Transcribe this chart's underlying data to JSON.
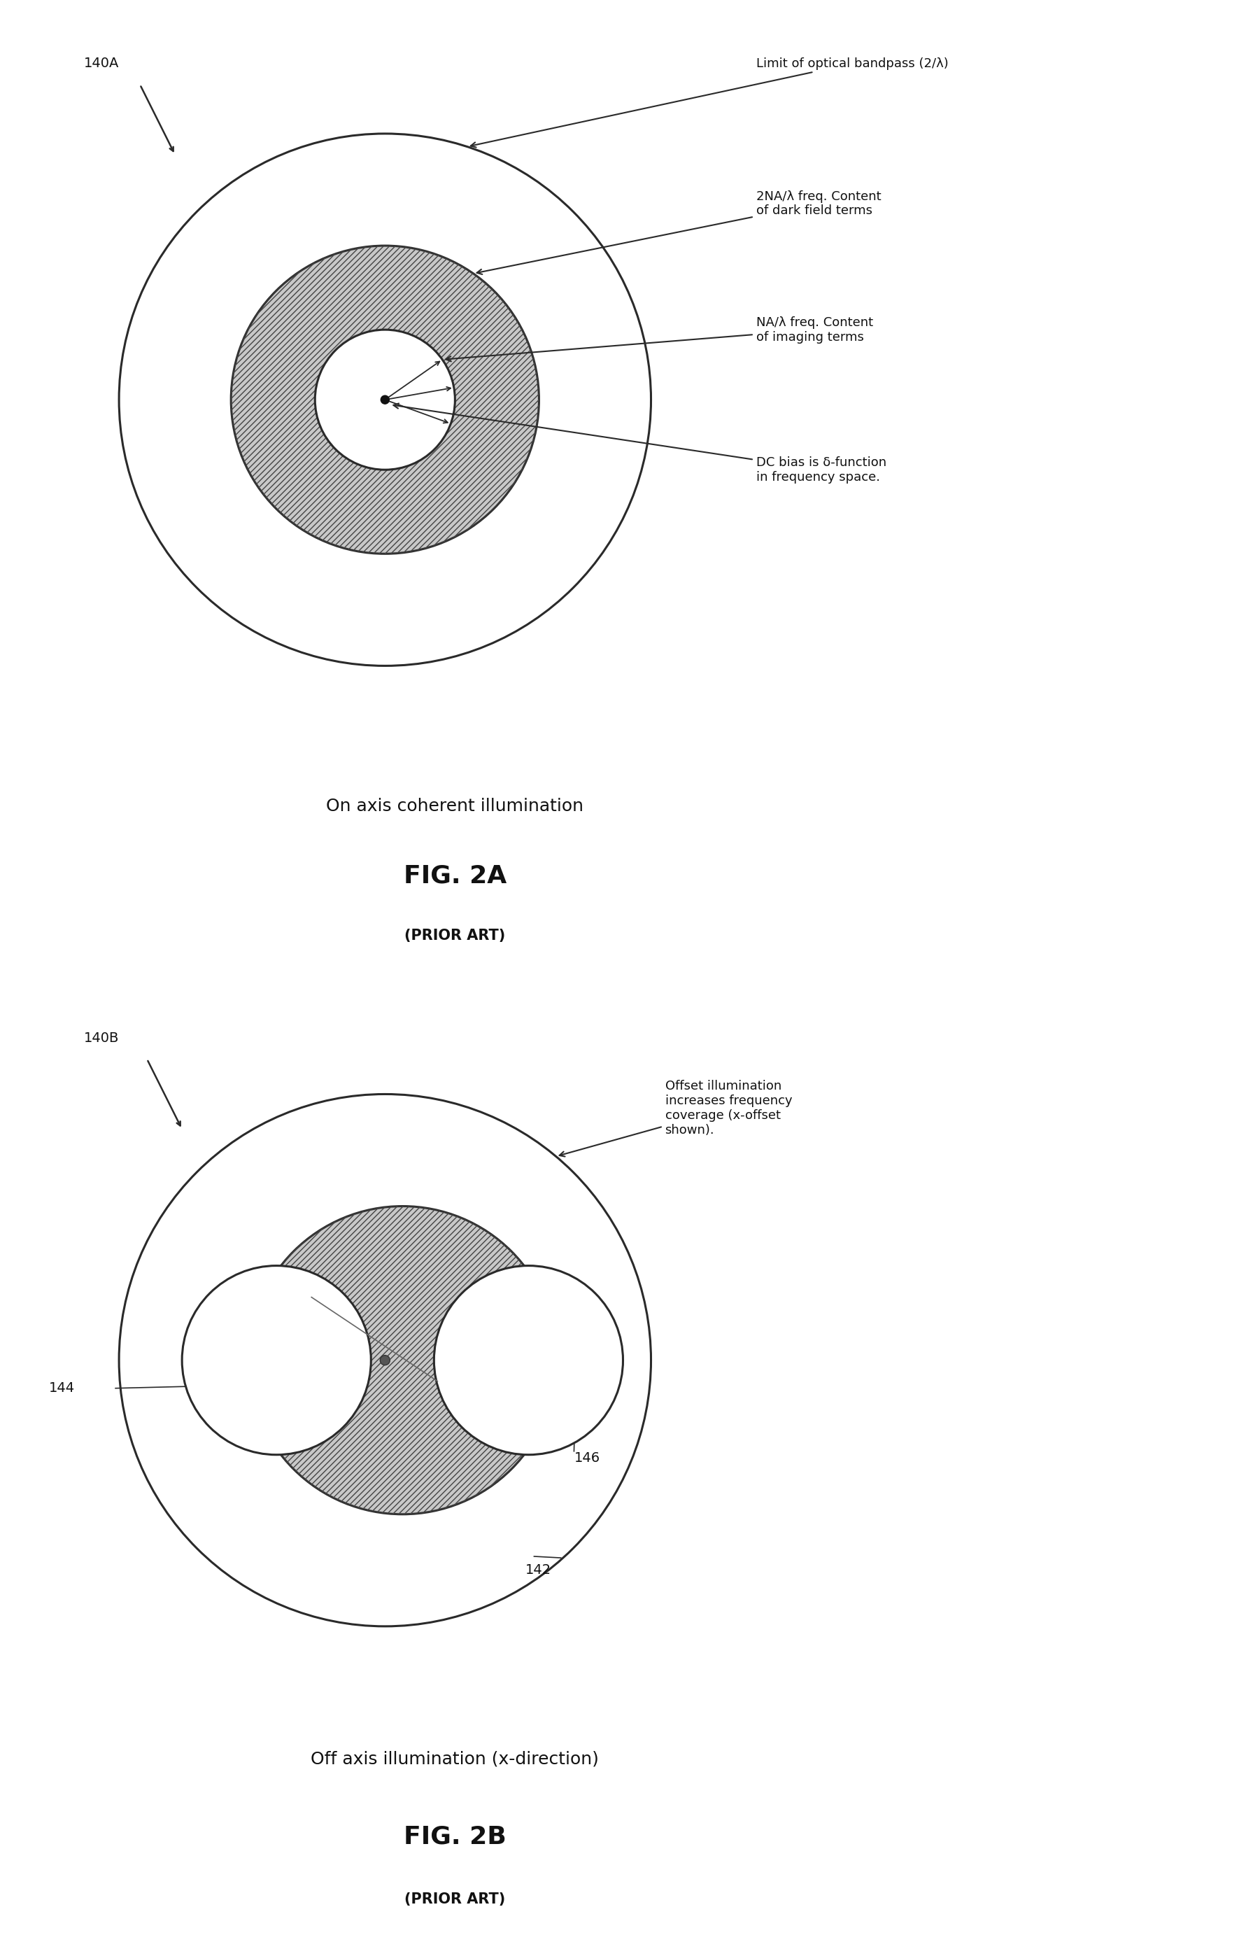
{
  "bg_color": "#ffffff",
  "fig_label_140A": "140A",
  "fig_label_140B": "140B",
  "fig_label_144": "144",
  "fig_label_146": "146",
  "fig_label_142": "142",
  "figA_title": "On axis coherent illumination",
  "figA_fig_label": "FIG. 2A",
  "figA_prior_art": "(PRIOR ART)",
  "figB_title": "Off axis illumination (x-direction)",
  "figB_fig_label": "FIG. 2B",
  "figB_prior_art": "(PRIOR ART)",
  "ann_optical_bandpass": "Limit of optical bandpass (2/λ)",
  "ann_dark_field": "2NA/λ freq. Content\nof dark field terms",
  "ann_imaging": "NA/λ freq. Content\nof imaging terms",
  "ann_dc_bias": "DC bias is δ-function\nin frequency space.",
  "ann_offset_illumination": "Offset illumination\nincreases frequency\ncoverage (x-offset\nshown).",
  "circle_edge_color": "#2a2a2a",
  "hatch_color": "#444444",
  "fill_gray": "#c8c8c8",
  "line_width": 2.2
}
